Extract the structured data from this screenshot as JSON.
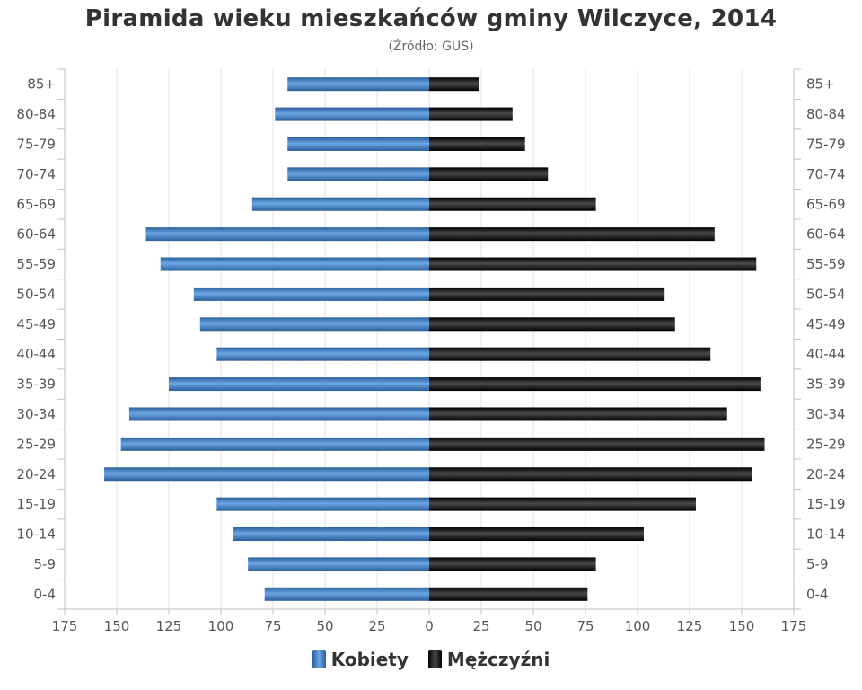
{
  "chart_data": {
    "type": "bar",
    "orientation": "horizontal",
    "title": "Piramida wieku mieszkańców gminy Wilczyce, 2014",
    "subtitle": "(Źródło: GUS)",
    "categories": [
      "85+",
      "80-84",
      "75-79",
      "70-74",
      "65-69",
      "60-64",
      "55-59",
      "50-54",
      "45-49",
      "40-44",
      "35-39",
      "30-34",
      "25-29",
      "20-24",
      "15-19",
      "10-14",
      "5-9",
      "0-4"
    ],
    "series": [
      {
        "name": "Kobiety",
        "color": "#3f7fc3",
        "values": [
          68,
          74,
          68,
          68,
          85,
          136,
          129,
          113,
          110,
          102,
          125,
          144,
          148,
          156,
          102,
          94,
          87,
          79
        ]
      },
      {
        "name": "Mężczyźni",
        "color": "#1a1a1a",
        "values": [
          24,
          40,
          46,
          57,
          80,
          137,
          157,
          113,
          118,
          135,
          159,
          143,
          161,
          155,
          128,
          103,
          80,
          76
        ]
      }
    ],
    "xlim": [
      -175,
      175
    ],
    "xticks": [
      "175",
      "150",
      "125",
      "100",
      "75",
      "50",
      "25",
      "0",
      "25",
      "50",
      "75",
      "100",
      "125",
      "150",
      "175"
    ],
    "grid": true,
    "legend_position": "bottom-center"
  }
}
